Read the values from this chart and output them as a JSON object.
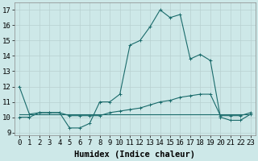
{
  "xlabel": "Humidex (Indice chaleur)",
  "xlim": [
    -0.5,
    23.5
  ],
  "ylim": [
    8.8,
    17.5
  ],
  "xticks": [
    0,
    1,
    2,
    3,
    4,
    5,
    6,
    7,
    8,
    9,
    10,
    11,
    12,
    13,
    14,
    15,
    16,
    17,
    18,
    19,
    20,
    21,
    22,
    23
  ],
  "yticks": [
    9,
    10,
    11,
    12,
    13,
    14,
    15,
    16,
    17
  ],
  "bg_color": "#cde8e8",
  "grid_color": "#b8d0d0",
  "line_color": "#1a6b6b",
  "line1_x": [
    0,
    1,
    2,
    3,
    4,
    5,
    6,
    7,
    8,
    9,
    10,
    11,
    12,
    13,
    14,
    15,
    16,
    17,
    18,
    19,
    20,
    21,
    22,
    23
  ],
  "line1_y": [
    12.0,
    10.2,
    10.3,
    10.3,
    10.3,
    9.3,
    9.3,
    9.6,
    11.0,
    11.0,
    11.5,
    14.7,
    15.0,
    15.9,
    17.0,
    16.5,
    16.7,
    13.8,
    14.1,
    13.7,
    10.0,
    9.8,
    9.8,
    10.2
  ],
  "line2_x": [
    0,
    1,
    2,
    3,
    4,
    5,
    6,
    7,
    8,
    9,
    10,
    11,
    12,
    13,
    14,
    15,
    16,
    17,
    18,
    19,
    20,
    21,
    22,
    23
  ],
  "line2_y": [
    10.0,
    10.0,
    10.3,
    10.3,
    10.3,
    10.1,
    10.1,
    10.1,
    10.1,
    10.3,
    10.4,
    10.5,
    10.6,
    10.8,
    11.0,
    11.1,
    11.3,
    11.4,
    11.5,
    11.5,
    10.1,
    10.1,
    10.1,
    10.3
  ],
  "line3_x": [
    0,
    1,
    2,
    3,
    4,
    5,
    6,
    7,
    8,
    9,
    10,
    11,
    12,
    13,
    14,
    15,
    16,
    17,
    18,
    19,
    20,
    21,
    22,
    23
  ],
  "line3_y": [
    10.2,
    10.2,
    10.2,
    10.2,
    10.2,
    10.2,
    10.2,
    10.2,
    10.2,
    10.2,
    10.2,
    10.2,
    10.2,
    10.2,
    10.2,
    10.2,
    10.2,
    10.2,
    10.2,
    10.2,
    10.2,
    10.2,
    10.2,
    10.2
  ],
  "tick_fontsize": 6.5,
  "label_fontsize": 7.5,
  "figsize": [
    3.2,
    2.0
  ],
  "dpi": 100
}
